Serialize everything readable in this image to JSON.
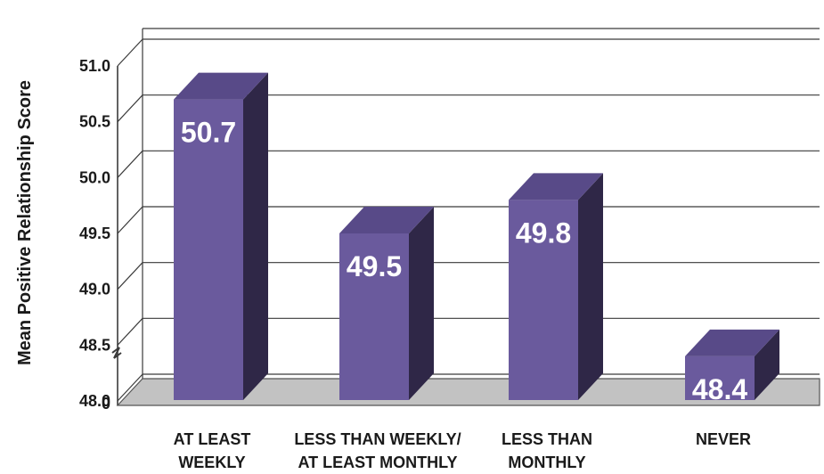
{
  "chart_data": {
    "type": "bar",
    "title": "",
    "xlabel": "",
    "ylabel": "Mean Positive Relationship Score",
    "ylim": [
      48.0,
      51.0
    ],
    "y_ticks": [
      "0",
      "48.0",
      "48.5",
      "49.0",
      "49.5",
      "50.0",
      "50.5",
      "51.0"
    ],
    "y_tick_values": [
      0,
      48.0,
      48.5,
      49.0,
      49.5,
      50.0,
      50.5,
      51.0
    ],
    "axis_break": true,
    "grid": true,
    "legend": false,
    "three_d": true,
    "categories": [
      [
        "AT LEAST",
        "WEEKLY"
      ],
      [
        "LESS THAN WEEKLY/",
        "AT LEAST MONTHLY"
      ],
      [
        "LESS THAN",
        "MONTHLY"
      ],
      [
        "NEVER"
      ]
    ],
    "values": [
      50.7,
      49.5,
      49.8,
      48.4
    ],
    "data_labels": [
      "50.7",
      "49.5",
      "49.8",
      "48.4"
    ],
    "colors": {
      "bar_front": "#6a5a9d",
      "bar_top": "#584a88",
      "bar_side": "#2f2747",
      "floor": "#c2c2c2",
      "grid": "#3a3a3a",
      "text": "#1a1a1a",
      "data_label": "#ffffff"
    }
  }
}
